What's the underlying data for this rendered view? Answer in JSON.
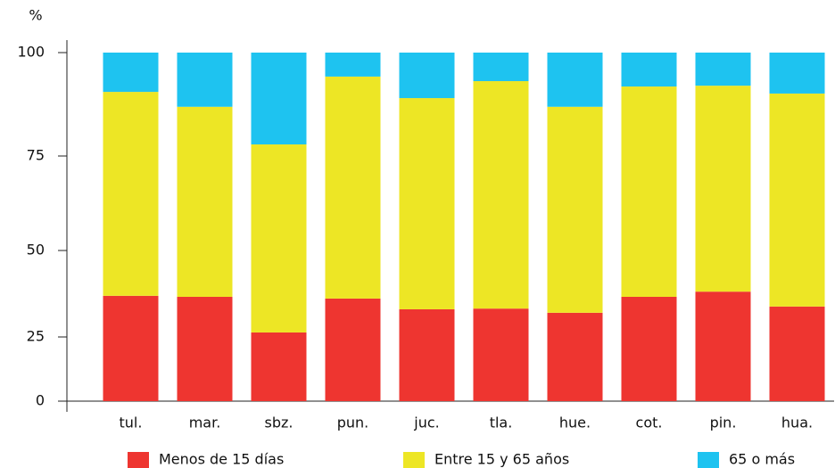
{
  "chart_data": {
    "type": "stacked_bar",
    "y_axis_label": "%",
    "categories": [
      "tul.",
      "mar.",
      "sbz.",
      "pun.",
      "juc.",
      "tla.",
      "hue.",
      "cot.",
      "pin.",
      "hua."
    ],
    "series": [
      {
        "name": "Menos de 15 días",
        "color": "#ee3530",
        "values": [
          36.9,
          36.6,
          26.3,
          36.1,
          33.0,
          33.2,
          32.0,
          36.6,
          38.1,
          33.8
        ]
      },
      {
        "name": "Entre 15 y 65 años",
        "color": "#ede625",
        "values": [
          53.6,
          50.3,
          51.5,
          58.1,
          56.0,
          59.9,
          54.9,
          55.2,
          53.9,
          56.3
        ]
      },
      {
        "name": "65 o más",
        "color": "#1ec3f0",
        "values": [
          9.5,
          13.1,
          22.2,
          5.8,
          11.0,
          6.9,
          13.1,
          8.2,
          8.0,
          9.9
        ]
      }
    ],
    "ylim": [
      0,
      100
    ],
    "yticks": [
      0,
      25,
      50,
      75,
      100
    ],
    "legend": "bottom"
  }
}
